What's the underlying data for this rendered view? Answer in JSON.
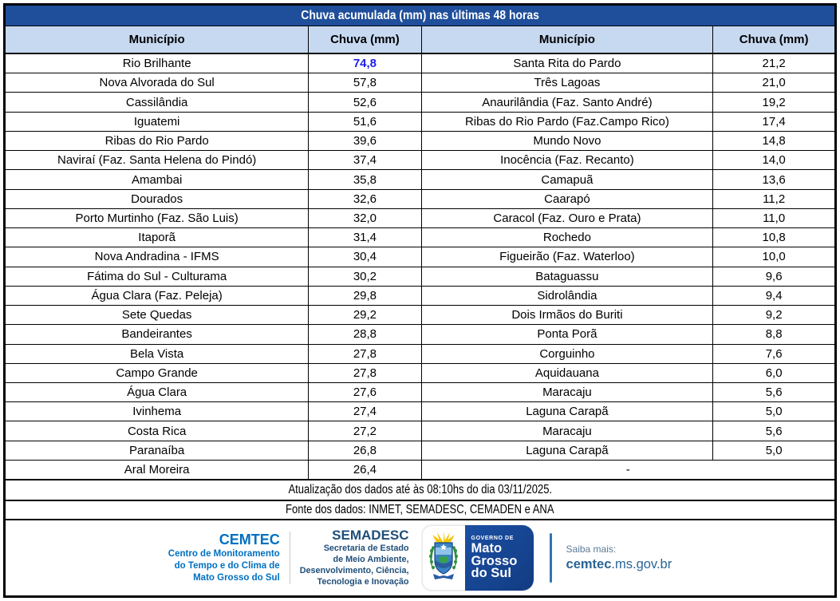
{
  "title": "Chuva acumulada (mm) nas últimas 48 horas",
  "table": {
    "headers": [
      "Município",
      "Chuva (mm)",
      "Município",
      "Chuva (mm)"
    ],
    "rows": [
      {
        "left_name": "Rio Brilhante",
        "left_value": "74,8",
        "left_highlight": true,
        "right_name": "Santa Rita do Pardo",
        "right_value": "21,2"
      },
      {
        "left_name": "Nova Alvorada do Sul",
        "left_value": "57,8",
        "right_name": "Três Lagoas",
        "right_value": "21,0"
      },
      {
        "left_name": "Cassilândia",
        "left_value": "52,6",
        "right_name": "Anaurilândia (Faz. Santo André)",
        "right_value": "19,2"
      },
      {
        "left_name": "Iguatemi",
        "left_value": "51,6",
        "right_name": "Ribas do Rio Pardo (Faz.Campo Rico)",
        "right_value": "17,4"
      },
      {
        "left_name": "Ribas do Rio Pardo",
        "left_value": "39,6",
        "right_name": "Mundo Novo",
        "right_value": "14,8"
      },
      {
        "left_name": "Naviraí (Faz. Santa Helena do Pindó)",
        "left_value": "37,4",
        "right_name": "Inocência (Faz. Recanto)",
        "right_value": "14,0"
      },
      {
        "left_name": "Amambai",
        "left_value": "35,8",
        "right_name": "Camapuã",
        "right_value": "13,6"
      },
      {
        "left_name": "Dourados",
        "left_value": "32,6",
        "right_name": "Caarapó",
        "right_value": "11,2"
      },
      {
        "left_name": "Porto Murtinho (Faz. São Luis)",
        "left_value": "32,0",
        "right_name": "Caracol (Faz. Ouro e Prata)",
        "right_value": "11,0"
      },
      {
        "left_name": "Itaporã",
        "left_value": "31,4",
        "right_name": "Rochedo",
        "right_value": "10,8"
      },
      {
        "left_name": "Nova Andradina - IFMS",
        "left_value": "30,4",
        "right_name": "Figueirão (Faz. Waterloo)",
        "right_value": "10,0"
      },
      {
        "left_name": "Fátima do Sul - Culturama",
        "left_value": "30,2",
        "right_name": "Bataguassu",
        "right_value": "9,6"
      },
      {
        "left_name": "Água Clara (Faz. Peleja)",
        "left_value": "29,8",
        "right_name": "Sidrolândia",
        "right_value": "9,4"
      },
      {
        "left_name": "Sete Quedas",
        "left_value": "29,2",
        "right_name": "Dois Irmãos do Buriti",
        "right_value": "9,2"
      },
      {
        "left_name": "Bandeirantes",
        "left_value": "28,8",
        "right_name": "Ponta Porã",
        "right_value": "8,8"
      },
      {
        "left_name": "Bela Vista",
        "left_value": "27,8",
        "right_name": "Corguinho",
        "right_value": "7,6"
      },
      {
        "left_name": "Campo Grande",
        "left_value": "27,8",
        "right_name": "Aquidauana",
        "right_value": "6,0"
      },
      {
        "left_name": "Água Clara",
        "left_value": "27,6",
        "right_name": "Maracaju",
        "right_value": "5,6"
      },
      {
        "left_name": "Ivinhema",
        "left_value": "27,4",
        "right_name": "Laguna Carapã",
        "right_value": "5,0"
      },
      {
        "left_name": "Costa Rica",
        "left_value": "27,2",
        "right_name": "Maracaju",
        "right_value": "5,6"
      },
      {
        "left_name": "Paranaíba",
        "left_value": "26,8",
        "right_name": "Laguna Carapã",
        "right_value": "5,0"
      },
      {
        "left_name": "Aral Moreira",
        "left_value": "26,4",
        "right_name": "-",
        "right_value": null
      }
    ]
  },
  "footer": {
    "update_text": "Atualização dos dados até às 08:10hs do dia 03/11/2025.",
    "source_text": "Fonte dos dados: INMET, SEMADESC, CEMADEN e ANA"
  },
  "branding": {
    "cemtec": {
      "name": "CEMTEC",
      "lines": [
        "Centro de Monitoramento",
        "do Tempo e do Clima de",
        "Mato Grosso do Sul"
      ]
    },
    "semadesc": {
      "name": "SEMADESC",
      "lines": [
        "Secretaria de Estado",
        "de Meio Ambiente,",
        "Desenvolvimento, Ciência,",
        "Tecnologia e Inovação"
      ]
    },
    "government": {
      "label": "GOVERNO DE",
      "name_lines": [
        "Mato",
        "Grosso",
        "do Sul"
      ]
    },
    "more_info": {
      "label": "Saiba mais:",
      "link_bold": "cemtec",
      "link_rest": ".ms.gov.br"
    }
  },
  "colors": {
    "title_bg": "#1f4e9b",
    "header_bg": "#c7d9f1",
    "highlight_value": "#1f1fe8",
    "cemtec_blue": "#0070c0",
    "semadesc_blue": "#1f4e79",
    "gov_panel_blue": "#16459a",
    "link_blue": "#2a6496",
    "border": "#000000"
  }
}
